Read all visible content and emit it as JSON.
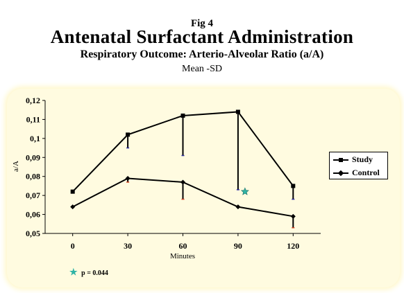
{
  "header": {
    "fig_label": "Fig 4",
    "title": "Antenatal Surfactant Administration",
    "subtitle": "Respiratory Outcome: Arterio-Alveolar Ratio (a/A)",
    "subsubtitle": "Mean -SD"
  },
  "footnote": {
    "star_icon": "star-icon",
    "text": "p = 0.044"
  },
  "colors": {
    "panel": "#fffbe0",
    "study_sd": "#2a2aa0",
    "control_sd": "#d04020",
    "star": "#2fb3a5"
  },
  "chart_data": {
    "type": "line",
    "categories": [
      "0",
      "30",
      "60",
      "90",
      "120"
    ],
    "xlabel": "Minutes",
    "ylabel": "a/A",
    "ylim": [
      0.05,
      0.12
    ],
    "yticks": [
      "0,05",
      "0,06",
      "0,07",
      "0,08",
      "0,09",
      "0,1",
      "0,11",
      "0,12"
    ],
    "grid": false,
    "legend_position": "right",
    "series": [
      {
        "name": "Study",
        "marker": "square",
        "values": [
          0.072,
          0.102,
          0.112,
          0.114,
          0.075
        ],
        "sd_lower": [
          0.072,
          0.095,
          0.091,
          0.073,
          0.068
        ]
      },
      {
        "name": "Control",
        "marker": "diamond",
        "values": [
          0.064,
          0.079,
          0.077,
          0.064,
          0.059
        ],
        "sd_lower": [
          0.064,
          0.077,
          0.068,
          0.064,
          0.053
        ]
      }
    ],
    "annotations": [
      {
        "category": "90",
        "y": 0.072,
        "symbol": "star",
        "note": "p = 0.044"
      }
    ]
  }
}
